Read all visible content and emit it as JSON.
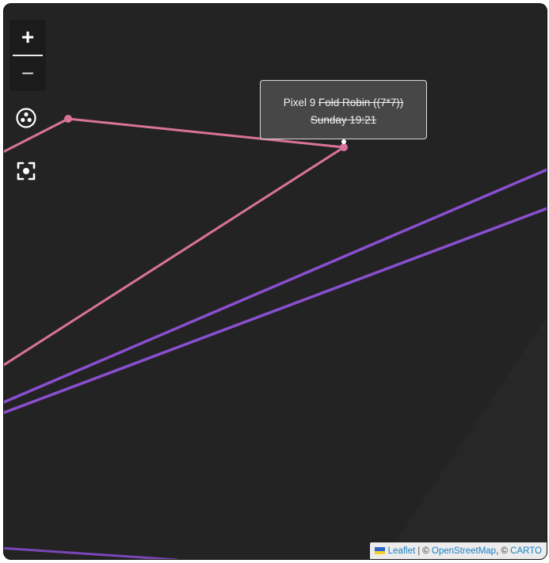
{
  "map": {
    "zoom_in_label": "+",
    "zoom_out_label": "−",
    "layers_icon": "layers-icon",
    "locate_icon": "locate-icon",
    "route_colors": {
      "pink": "#d9739a",
      "purple": "#8a4fd0"
    }
  },
  "tooltip": {
    "device": "Pixel 9",
    "name_struck": "Fold Robin ((7*7))",
    "time_struck": "Sunday 19:21"
  },
  "attribution": {
    "leaflet": "Leaflet",
    "separator": "|",
    "copyright_1": "©",
    "osm": "OpenStreetMap",
    "comma": ",",
    "copyright_2": "©",
    "carto": "CARTO"
  }
}
